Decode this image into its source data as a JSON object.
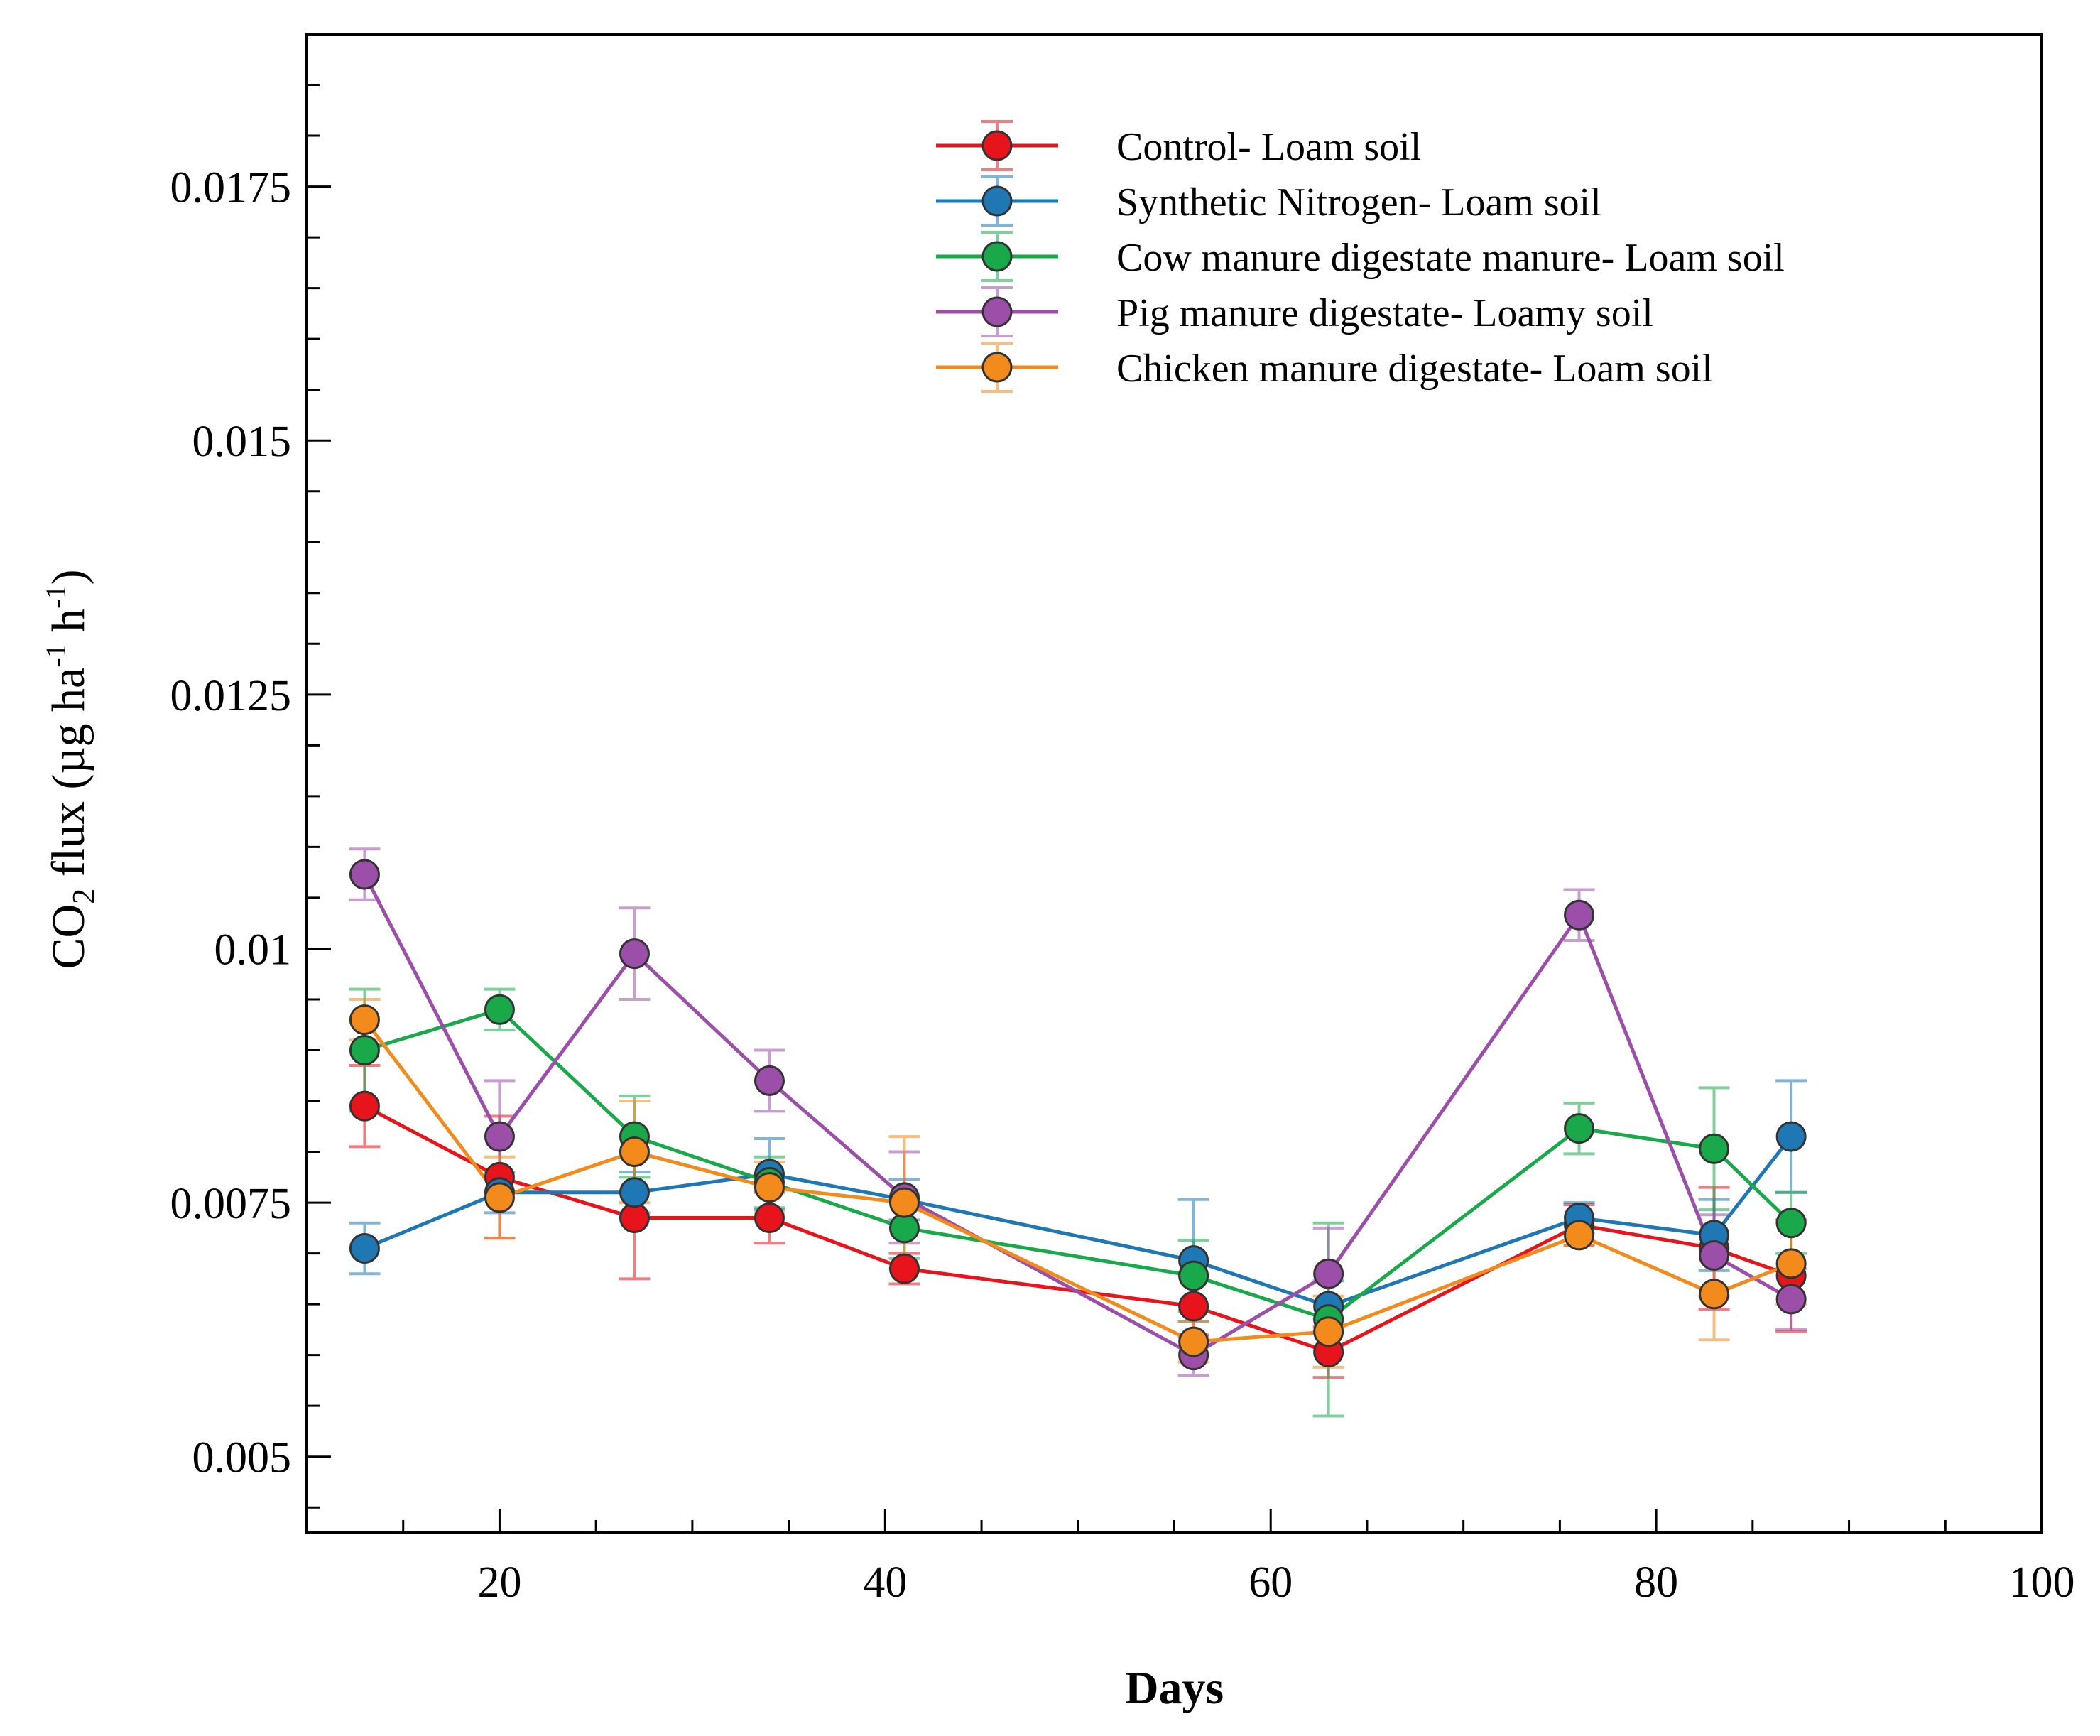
{
  "chart_data": {
    "type": "line",
    "title": "",
    "xlabel": "Days",
    "ylabel": {
      "prefix": "CO",
      "sub": "2",
      "mid": " flux (µg ha",
      "sup1": "-1",
      "mid2": " h",
      "sup2": "-1",
      "suffix": ")"
    },
    "xlim": [
      10,
      100
    ],
    "ylim": [
      0.00425,
      0.019
    ],
    "xticks": [
      20,
      40,
      60,
      80,
      100
    ],
    "xtick_labels": [
      "20",
      "40",
      "60",
      "80",
      "100"
    ],
    "yticks": [
      0.005,
      0.0075,
      0.01,
      0.0125,
      0.015,
      0.0175
    ],
    "ytick_labels": [
      "0.005",
      "0.0075",
      "0.01",
      "0.0125",
      "0.015",
      "0.0175"
    ],
    "legend_position": "top-right",
    "grid": false,
    "x": [
      13,
      20,
      27,
      34,
      41,
      56,
      63,
      76,
      83,
      87
    ],
    "series": [
      {
        "name": "Control- Loam soil",
        "color": "#e8141c",
        "values": [
          0.00845,
          0.00775,
          0.00735,
          0.00735,
          0.00685,
          0.00648,
          0.00603,
          0.00728,
          0.00705,
          0.00678
        ],
        "errors": [
          0.0004,
          0.0006,
          0.0006,
          0.00025,
          0.00015,
          0.0003,
          0.00025,
          0.0002,
          0.0006,
          0.00055
        ]
      },
      {
        "name": "Synthetic Nitrogen- Loam soil",
        "color": "#1f77b4",
        "values": [
          0.00705,
          0.0076,
          0.0076,
          0.00778,
          0.00753,
          0.00693,
          0.00648,
          0.00735,
          0.00718,
          0.00815
        ],
        "errors": [
          0.00025,
          0.0002,
          0.0002,
          0.00035,
          0.0002,
          0.0006,
          0.00025,
          0.00015,
          0.00035,
          0.00055
        ]
      },
      {
        "name": "Cow manure digestate manure- Loam soil",
        "color": "#19a84a",
        "values": [
          0.009,
          0.0094,
          0.00815,
          0.0077,
          0.00725,
          0.00678,
          0.00635,
          0.00823,
          0.00803,
          0.0073
        ],
        "errors": [
          0.0006,
          0.0002,
          0.0004,
          0.00025,
          0.0003,
          0.00035,
          0.00095,
          0.00025,
          0.0006,
          0.0003
        ]
      },
      {
        "name": "Pig manure digestate- Loamy soil",
        "color": "#9b4fa8",
        "values": [
          0.01073,
          0.00815,
          0.00995,
          0.0087,
          0.00755,
          0.006,
          0.0068,
          0.01033,
          0.00698,
          0.00655
        ],
        "errors": [
          0.00025,
          0.00055,
          0.00045,
          0.0003,
          0.00045,
          0.0002,
          0.00045,
          0.00025,
          0.0004,
          0.0003
        ]
      },
      {
        "name": "Chicken manure digestate- Loam soil",
        "color": "#f28a1c",
        "values": [
          0.0093,
          0.00755,
          0.008,
          0.00765,
          0.0075,
          0.00613,
          0.00623,
          0.00718,
          0.0066,
          0.0069
        ],
        "errors": [
          0.0002,
          0.0004,
          0.0005,
          0.00025,
          0.00065,
          0.0002,
          0.00035,
          0.0001,
          0.00045,
          0.0004
        ]
      }
    ]
  }
}
